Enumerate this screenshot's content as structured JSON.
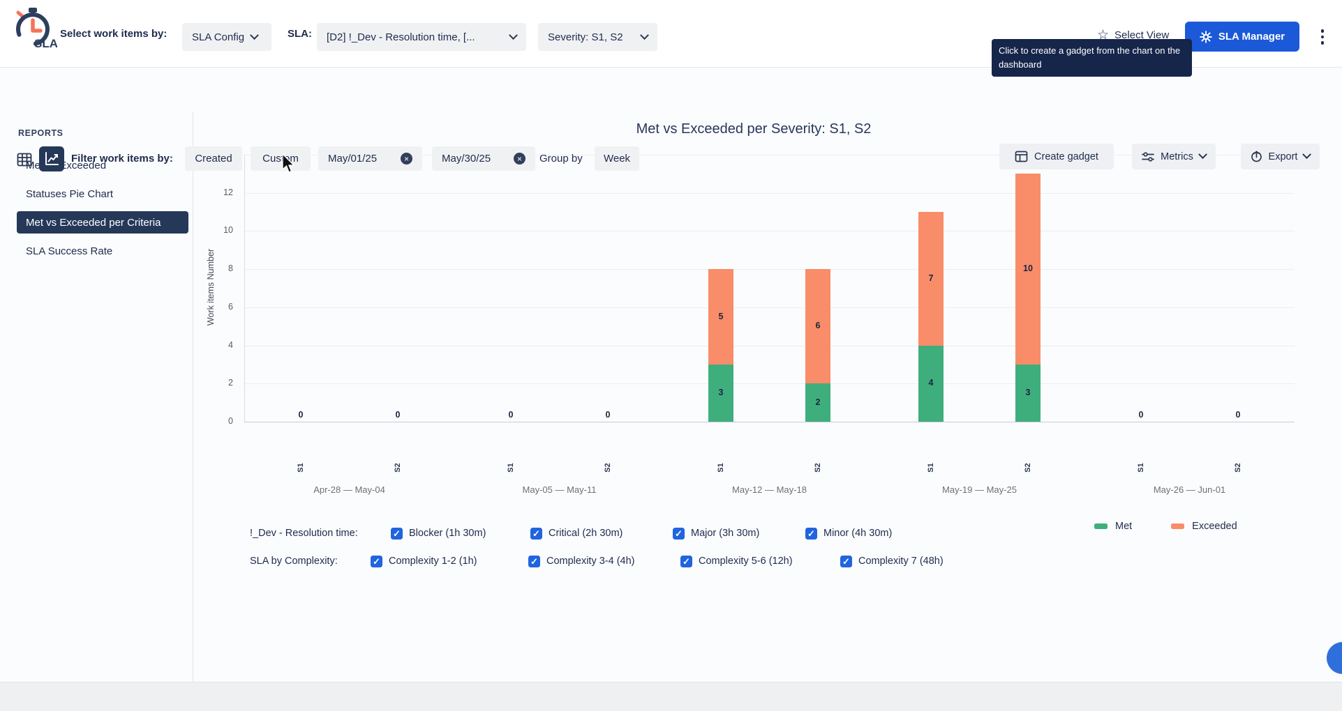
{
  "header": {
    "logo_text": "SLA",
    "select_work_items_label": "Select work items by:",
    "sla_config_dropdown": "SLA Config",
    "sla_label": "SLA:",
    "sla_dropdown_value": "[D2] !_Dev - Resolution time, [...",
    "severity_dropdown_value": "Severity: S1, S2",
    "select_view_label": "Select View",
    "sla_manager_button": "SLA Manager",
    "tooltip_text": "Click to create a gadget from the chart on the dashboard"
  },
  "toolbar": {
    "filter_label": "Filter work items by:",
    "created_chip": "Created",
    "custom_chip": "Custom",
    "date_from": "May/01/25",
    "date_to": "May/30/25",
    "group_by_label": "Group by",
    "group_by_value": "Week",
    "create_gadget_button": "Create gadget",
    "metrics_button": "Metrics",
    "export_button": "Export"
  },
  "sidebar": {
    "heading": "REPORTS",
    "items": [
      {
        "label": "Met vs Exceeded",
        "selected": false
      },
      {
        "label": "Statuses Pie Chart",
        "selected": false
      },
      {
        "label": "Met vs Exceeded per Criteria",
        "selected": true
      },
      {
        "label": "SLA Success Rate",
        "selected": false
      }
    ]
  },
  "chart_data": {
    "type": "bar",
    "stacked": true,
    "title": "Met vs Exceeded per Severity: S1, S2",
    "ylabel": "Work items Number",
    "ylim": [
      0,
      14
    ],
    "ytick_step": 2,
    "grid": true,
    "legend_position": "bottom-right",
    "groups": [
      "Apr-28 — May-04",
      "May-05 — May-11",
      "May-12 — May-18",
      "May-19 — May-25",
      "May-26 — Jun-01"
    ],
    "bars_per_group": [
      "S1",
      "S2"
    ],
    "series": [
      {
        "name": "Met",
        "color": "#3fae7d",
        "values": [
          [
            0,
            0
          ],
          [
            0,
            0
          ],
          [
            3,
            2
          ],
          [
            4,
            3
          ],
          [
            0,
            0
          ]
        ]
      },
      {
        "name": "Exceeded",
        "color": "#f98c69",
        "values": [
          [
            0,
            0
          ],
          [
            0,
            0
          ],
          [
            5,
            6
          ],
          [
            7,
            10
          ],
          [
            0,
            0
          ]
        ]
      }
    ],
    "zero_label": "0"
  },
  "filters": {
    "rows": [
      {
        "label": "!_Dev - Resolution time:",
        "options": [
          {
            "label": "Blocker (1h 30m)",
            "checked": true
          },
          {
            "label": "Critical (2h 30m)",
            "checked": true
          },
          {
            "label": "Major (3h 30m)",
            "checked": true
          },
          {
            "label": "Minor (4h 30m)",
            "checked": true
          }
        ]
      },
      {
        "label": "SLA by Complexity:",
        "options": [
          {
            "label": "Complexity 1-2 (1h)",
            "checked": true
          },
          {
            "label": "Complexity 3-4 (4h)",
            "checked": true
          },
          {
            "label": "Complexity 5-6 (12h)",
            "checked": true
          },
          {
            "label": "Complexity 7 (48h)",
            "checked": true
          }
        ]
      }
    ]
  },
  "colors": {
    "navy": "#1e2b4d",
    "selected_bg": "#253858",
    "primary_blue": "#1b59d8",
    "checkbox_blue": "#2064e0",
    "met_green": "#3fae7d",
    "exceeded_orange": "#f98c69",
    "chip_bg": "#f0f1f3",
    "tooltip_bg": "#16254a"
  }
}
